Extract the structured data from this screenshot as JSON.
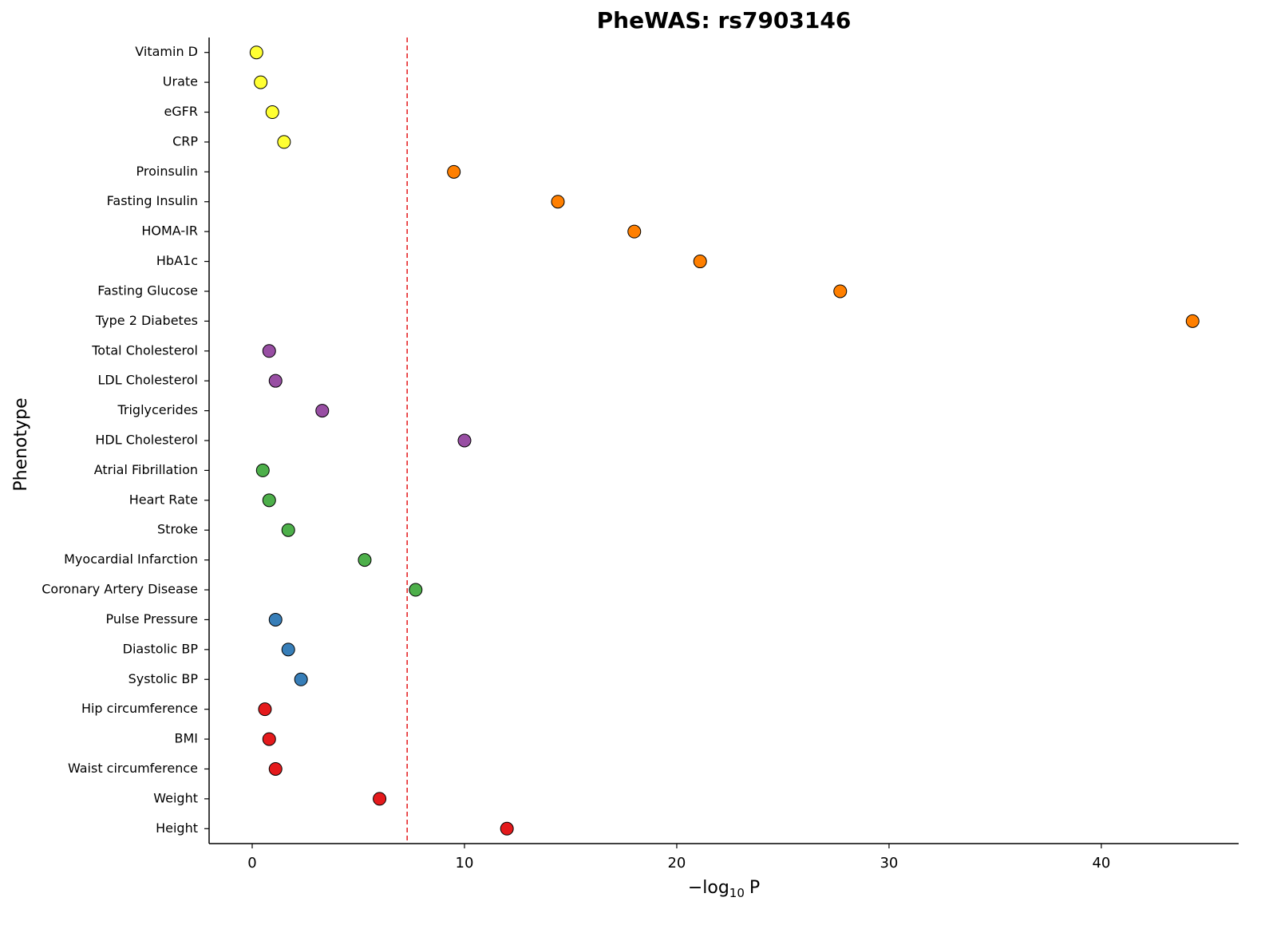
{
  "chart_data": {
    "type": "scatter",
    "title": "PheWAS: rs7903146",
    "y_label": "Phenotype",
    "x_label": {
      "main": "−log",
      "sub": "10",
      "tail": "P"
    },
    "categories": [
      "Vitamin D",
      "Urate",
      "eGFR",
      "CRP",
      "Proinsulin",
      "Fasting Insulin",
      "HOMA-IR",
      "HbA1c",
      "Fasting Glucose",
      "Type 2 Diabetes",
      "Total Cholesterol",
      "LDL Cholesterol",
      "Triglycerides",
      "HDL Cholesterol",
      "Atrial Fibrillation",
      "Heart Rate",
      "Stroke",
      "Myocardial Infarction",
      "Coronary Artery Disease",
      "Pulse Pressure",
      "Diastolic BP",
      "Systolic BP",
      "Hip circumference",
      "BMI",
      "Waist circumference",
      "Weight",
      "Height"
    ],
    "values": [
      0.2,
      0.4,
      0.95,
      1.5,
      9.5,
      14.4,
      18.0,
      21.1,
      27.7,
      44.3,
      0.8,
      1.1,
      3.3,
      10.0,
      0.5,
      0.8,
      1.7,
      5.3,
      7.7,
      1.1,
      1.7,
      2.3,
      0.6,
      0.8,
      1.1,
      6.0,
      12.0
    ],
    "colors": [
      "#ffff33",
      "#ffff33",
      "#ffff33",
      "#ffff33",
      "#ff7f00",
      "#ff7f00",
      "#ff7f00",
      "#ff7f00",
      "#ff7f00",
      "#ff7f00",
      "#984ea3",
      "#984ea3",
      "#984ea3",
      "#984ea3",
      "#4daf4a",
      "#4daf4a",
      "#4daf4a",
      "#4daf4a",
      "#4daf4a",
      "#377eb8",
      "#377eb8",
      "#377eb8",
      "#e41a1c",
      "#e41a1c",
      "#e41a1c",
      "#e41a1c",
      "#e41a1c"
    ],
    "threshold": 7.3,
    "threshold_color": "#e41a1c",
    "xlim": [
      -2.03,
      46.47
    ],
    "xticks": [
      0,
      10,
      20,
      30,
      40
    ]
  }
}
